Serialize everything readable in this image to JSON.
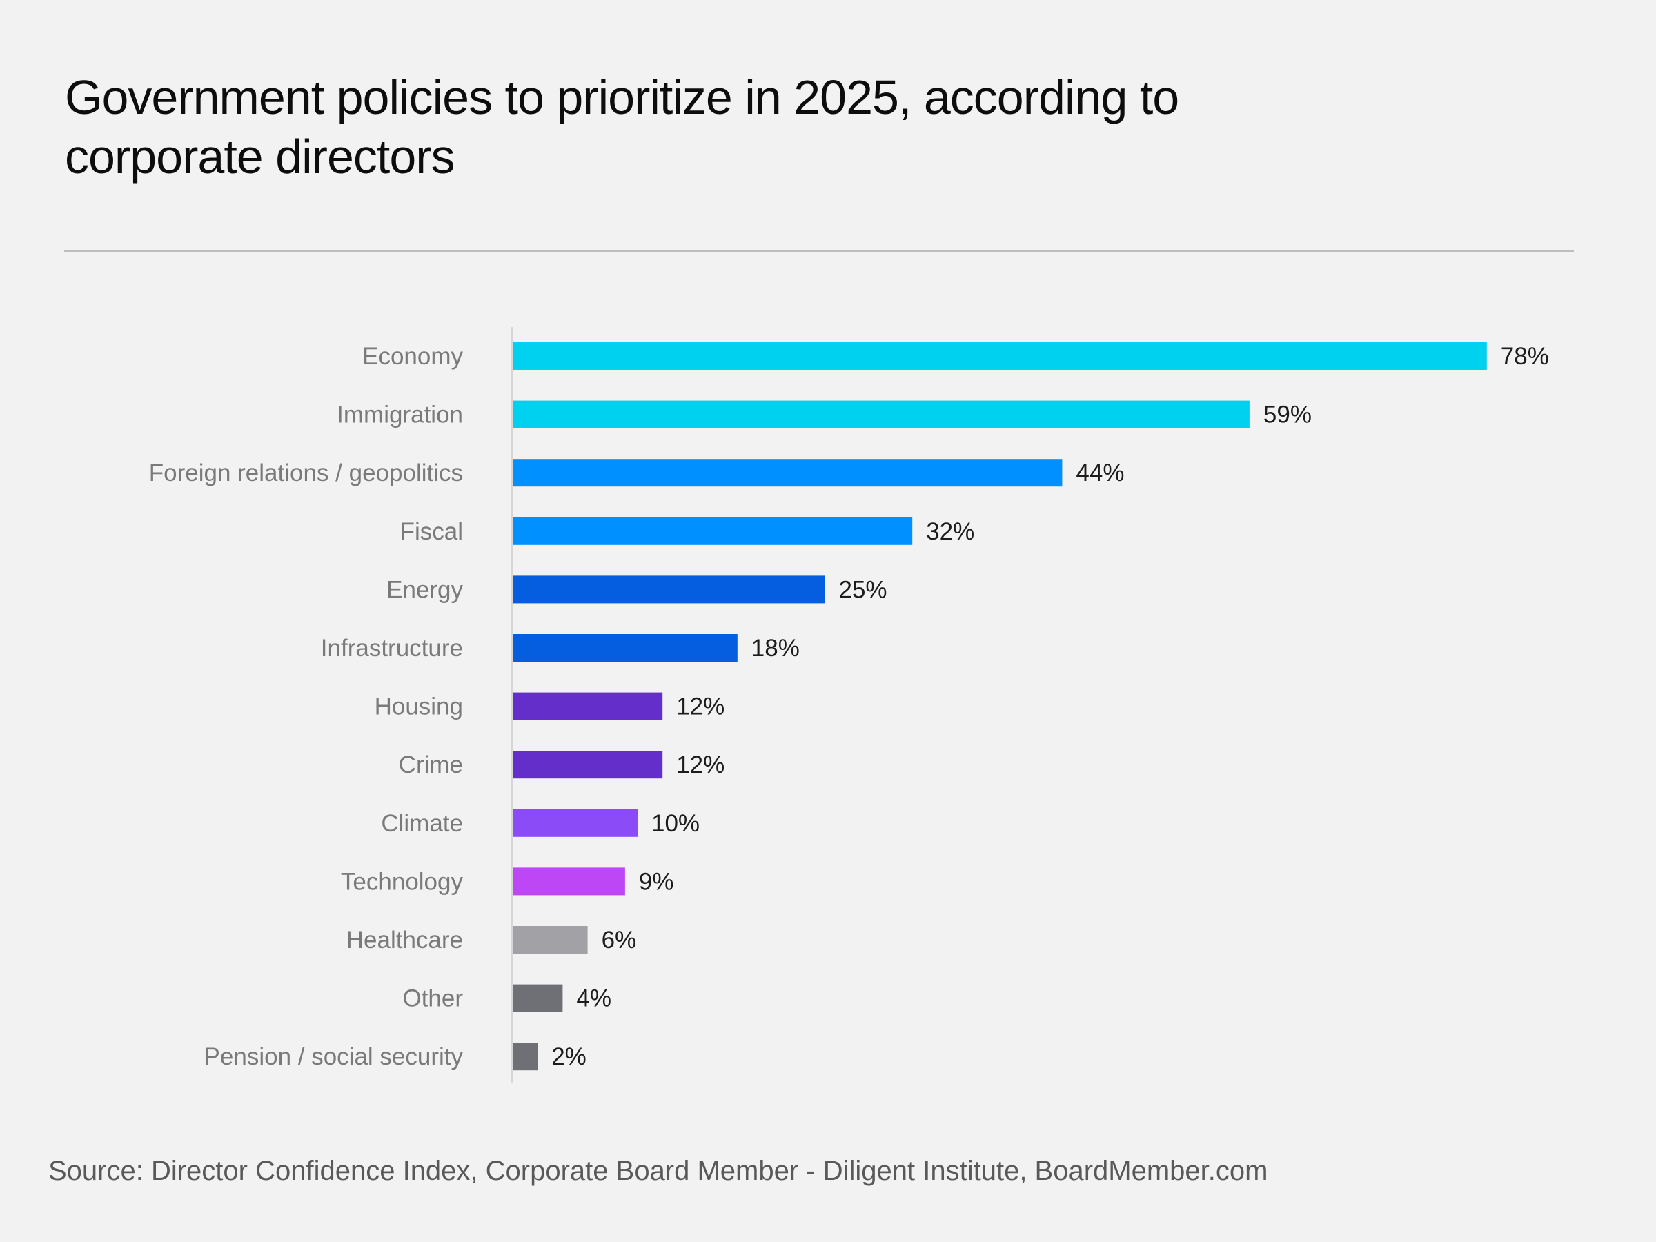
{
  "chart_data": {
    "type": "bar",
    "orientation": "horizontal",
    "title": "Government policies to prioritize in 2025, according to corporate directors",
    "title_lines": [
      "Government policies to prioritize in 2025, according to",
      "corporate directors"
    ],
    "xlabel": "",
    "ylabel": "",
    "xlim": [
      0,
      80
    ],
    "grid": false,
    "legend": "none",
    "unit": "%",
    "categories": [
      "Economy",
      "Immigration",
      "Foreign relations / geopolitics",
      "Fiscal",
      "Energy",
      "Infrastructure",
      "Housing",
      "Crime",
      "Climate",
      "Technology",
      "Healthcare",
      "Other",
      "Pension / social security"
    ],
    "values": [
      78,
      59,
      44,
      32,
      25,
      18,
      12,
      12,
      10,
      9,
      6,
      4,
      2
    ],
    "value_labels": [
      "78%",
      "59%",
      "44%",
      "32%",
      "25%",
      "18%",
      "12%",
      "12%",
      "10%",
      "9%",
      "6%",
      "4%",
      "2%"
    ],
    "colors": [
      "#00d1ef",
      "#00d1ef",
      "#0090ff",
      "#0090ff",
      "#055de0",
      "#055de0",
      "#642ecb",
      "#642ecb",
      "#8b4cf7",
      "#bd47f5",
      "#a2a2a6",
      "#6e7075",
      "#6e7075"
    ],
    "source": "Source: Director Confidence Index, Corporate Board Member - Diligent Institute, BoardMember.com"
  }
}
